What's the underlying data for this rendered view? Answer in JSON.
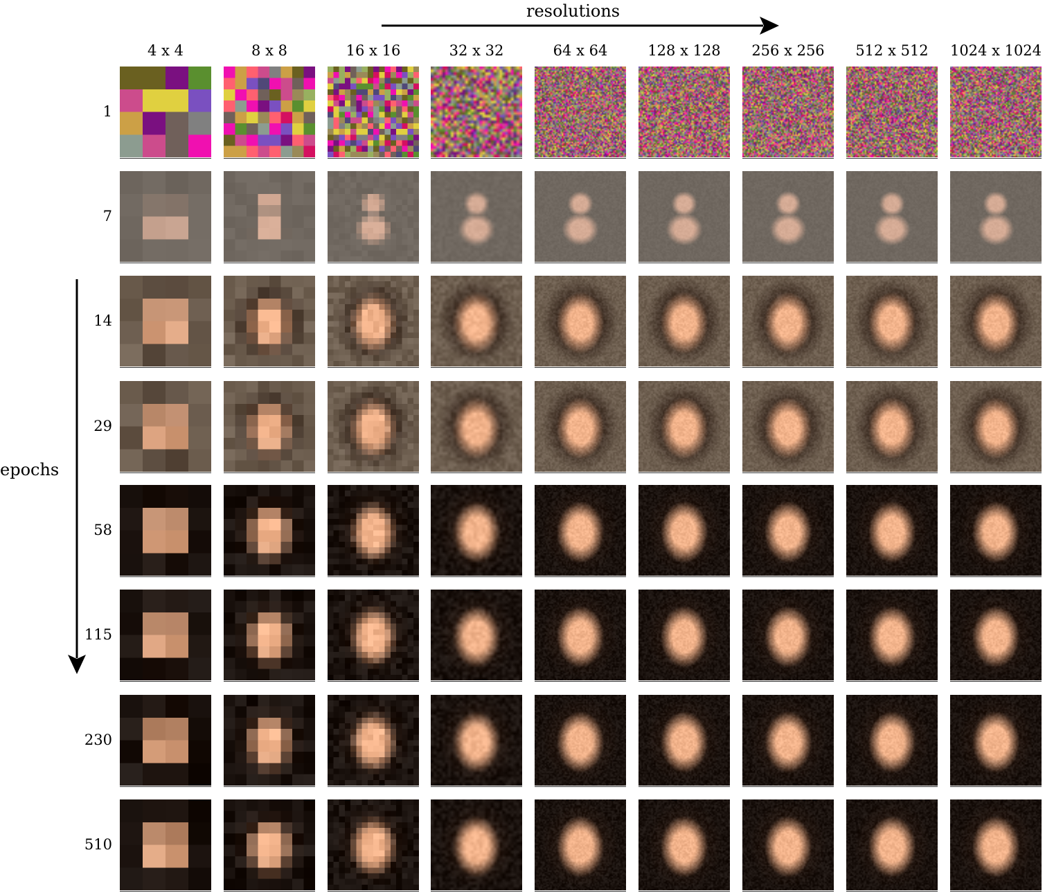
{
  "figure": {
    "x_axis_title": "resolutions",
    "y_axis_title": "epochs",
    "resolutions": [
      "4 x 4",
      "8 x 8",
      "16 x 16",
      "32 x 32",
      "64 x 64",
      "128 x 128",
      "256 x 256",
      "512 x 512",
      "1024 x 1024"
    ],
    "epochs": [
      "1",
      "7",
      "14",
      "29",
      "58",
      "115",
      "230",
      "510"
    ]
  },
  "palette": {
    "noise": [
      "#5a8f2f",
      "#f010b0",
      "#9a8a58",
      "#d41060",
      "#98b060",
      "#8c9c90",
      "#cca046",
      "#70605a",
      "#e0d040",
      "#ff6070",
      "#504878",
      "#808080",
      "#7a50c0",
      "#7a1080",
      "#6a6020",
      "#cc4c8c"
    ],
    "skin": "#f3b48c",
    "hair": "#2a1a12",
    "background_dark": "#1a120e"
  }
}
